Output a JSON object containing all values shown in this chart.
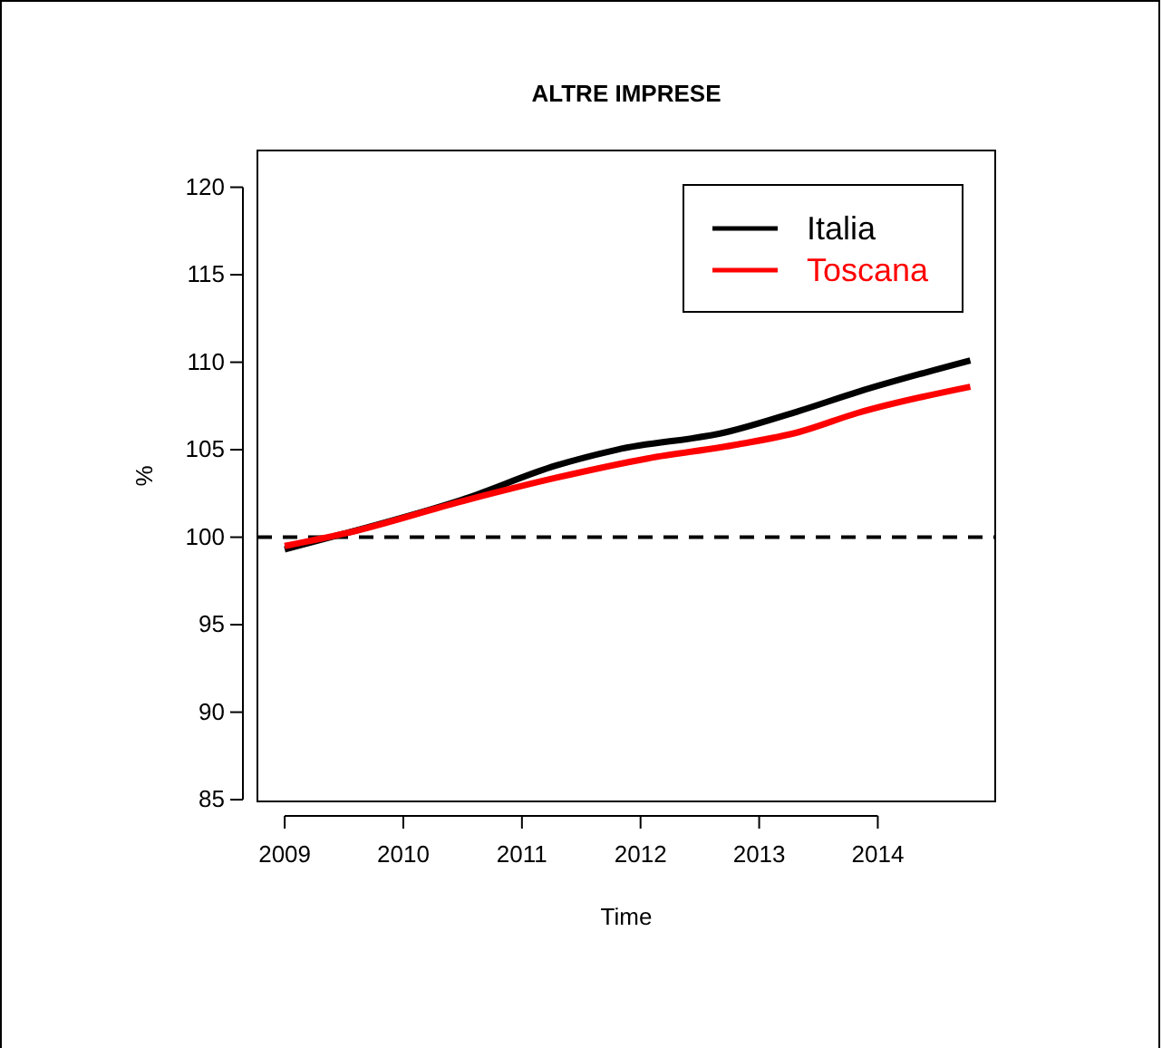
{
  "chart_data": {
    "type": "line",
    "title": "ALTRE IMPRESE",
    "xlabel": "Time",
    "ylabel": "%",
    "xlim": [
      2008.77,
      2014.99
    ],
    "xticks": [
      2009,
      2010,
      2011,
      2012,
      2013,
      2014
    ],
    "ylim": [
      84.9,
      122.1
    ],
    "yticks": [
      85,
      90,
      95,
      100,
      105,
      110,
      115,
      120
    ],
    "series": [
      {
        "name": "Italia",
        "color": "#000000",
        "x": [
          2009.0,
          2009.5,
          2010.52,
          2011.29,
          2011.8,
          2012.72,
          2013.33,
          2013.83,
          2014.78
        ],
        "values": [
          99.3,
          100.2,
          102.2,
          104.1,
          105.0,
          106.0,
          107.2,
          108.3,
          110.1
        ]
      },
      {
        "name": "Toscana",
        "color": "#ff0000",
        "x": [
          2009.0,
          2009.5,
          2010.52,
          2011.29,
          2012.06,
          2012.82,
          2013.33,
          2013.83,
          2014.78
        ],
        "values": [
          99.5,
          100.2,
          102.1,
          103.4,
          104.5,
          105.3,
          106.0,
          107.1,
          108.6
        ]
      }
    ],
    "ref_lines": [
      {
        "axis": "y",
        "value": 100,
        "color": "#000000",
        "line_style": "dashed"
      }
    ],
    "legend": "top right",
    "line_style": "solid",
    "marker": "none",
    "grid": false
  }
}
